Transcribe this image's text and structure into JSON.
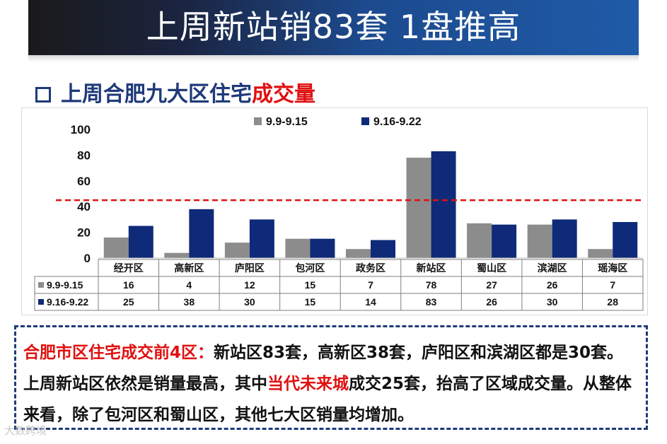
{
  "header": {
    "title": "上周新站销83套 1盘推高"
  },
  "section": {
    "prefix_label": "上周合肥九大区住宅",
    "highlight_label": "成交量"
  },
  "chart_data": {
    "type": "bar",
    "title": "",
    "categories": [
      "经开区",
      "高新区",
      "庐阳区",
      "包河区",
      "政务区",
      "新站区",
      "蜀山区",
      "滨湖区",
      "瑶海区"
    ],
    "series": [
      {
        "name": "9.9-9.15",
        "values": [
          16,
          4,
          12,
          15,
          7,
          78,
          27,
          26,
          7
        ],
        "color": "#8c8c8c"
      },
      {
        "name": "9.16-9.22",
        "values": [
          25,
          38,
          30,
          15,
          14,
          83,
          26,
          30,
          28
        ],
        "color": "#0f2a78"
      }
    ],
    "ylim": [
      0,
      100
    ],
    "yticks": [
      "0",
      "20",
      "40",
      "60",
      "80",
      "100"
    ],
    "average_line": {
      "value": 45,
      "color": "#e01010",
      "style": "dashed"
    },
    "legend_position": "top",
    "data_table": true
  },
  "note": {
    "lead": "合肥市区住宅成交前4区：",
    "text1": "新站区83套，高新区38套，庐阳区和滨湖区都是30套。上周新站区依然是销量最高，其中",
    "highlight": "当代未来城",
    "text2": "成交25套，抬高了区域成交量。从整体来看，除了包河区和蜀山区，其他七大区销量均增加。"
  },
  "watermark": {
    "text": "大数跨境"
  },
  "colors": {
    "title_bg": "#1c4a8e",
    "accent_red": "#e01010",
    "dark_blue": "#1f3a7a"
  }
}
